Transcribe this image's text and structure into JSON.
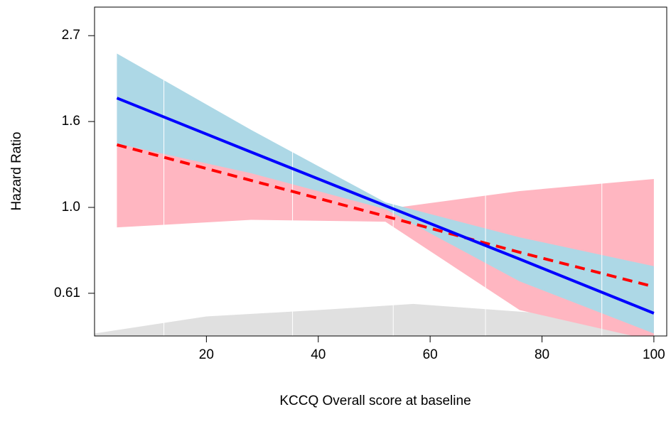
{
  "chart_data": {
    "type": "line",
    "x_label": "KCCQ Overall score at baseline",
    "y_label": "Hazard Ratio",
    "log_y": true,
    "xlim": [
      0,
      102.3
    ],
    "ylim": [
      0.473,
      3.21
    ],
    "xticks": [
      20,
      40,
      60,
      80,
      100
    ],
    "yticks": [
      {
        "value": 0.6065,
        "label": "0.61"
      },
      {
        "value": 1,
        "label": "1.0"
      },
      {
        "value": 1.6487,
        "label": "1.6"
      },
      {
        "value": 2.7183,
        "label": "2.7"
      }
    ],
    "x": [
      4,
      28,
      52,
      76,
      100
    ],
    "series": [
      {
        "color": "#0000ff",
        "band_color": "#add8e6",
        "dashed": false,
        "values": [
          1.89,
          1.38,
          1.01,
          0.74,
          0.54
        ],
        "lower": [
          1.45,
          1.22,
          0.99,
          0.65,
          0.48
        ],
        "upper": [
          2.45,
          1.57,
          1.03,
          0.84,
          0.71
        ]
      },
      {
        "color": "#ff0000",
        "band_color": "#ffb6c1",
        "dashed": true,
        "values": [
          1.44,
          1.17,
          0.95,
          0.77,
          0.63
        ],
        "lower": [
          0.89,
          0.93,
          0.92,
          0.55,
          0.46
        ],
        "upper": [
          2.33,
          1.45,
          0.99,
          1.1,
          1.18
        ]
      }
    ],
    "density": {
      "color": "#e0e0e0",
      "x": [
        0,
        20,
        40,
        57,
        80,
        100
      ],
      "values": [
        0.48,
        0.53,
        0.55,
        0.57,
        0.54,
        0.5
      ]
    },
    "vlines": {
      "color": "#ffffff",
      "values": [
        12.4,
        35.4,
        53.4,
        69.9,
        90.7
      ]
    }
  }
}
